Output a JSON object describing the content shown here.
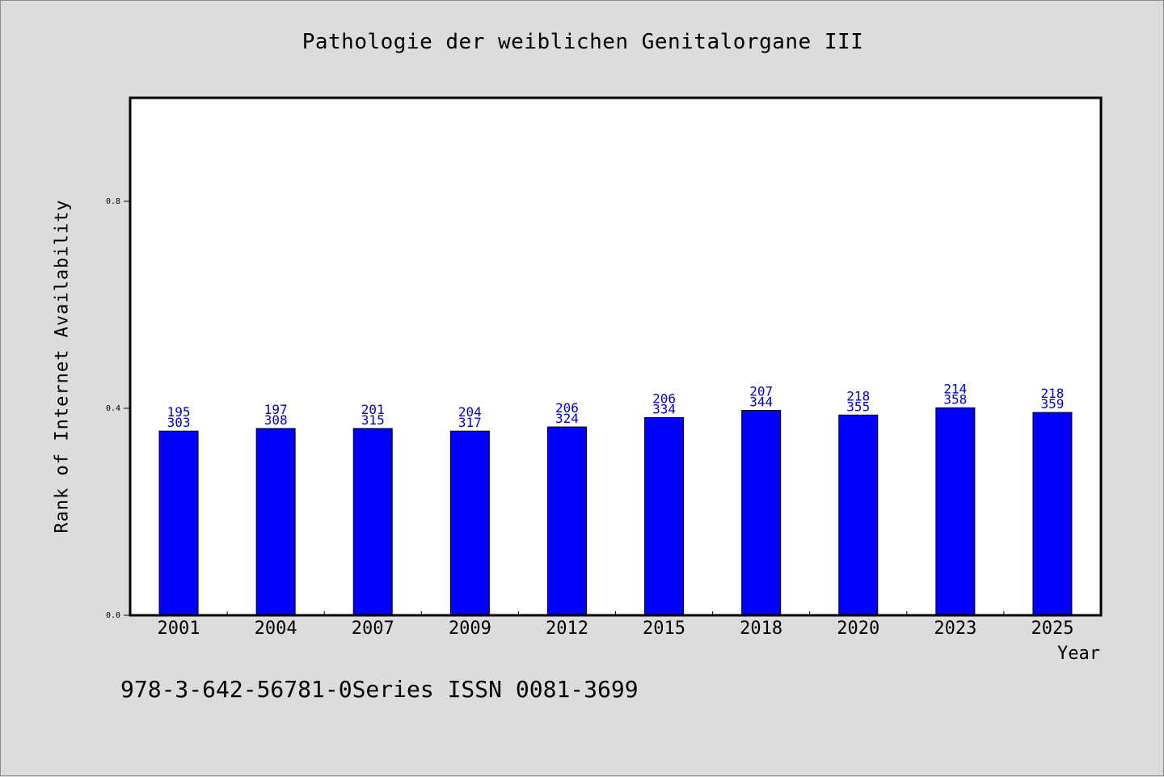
{
  "chart_data": {
    "type": "bar",
    "title": "Pathologie der weiblichen Genitalorgane III",
    "xlabel": "Year",
    "ylabel": "Rank of Internet Availability",
    "categories": [
      "2001",
      "2004",
      "2007",
      "2009",
      "2012",
      "2015",
      "2018",
      "2020",
      "2023",
      "2025"
    ],
    "values": [
      0.356,
      0.361,
      0.361,
      0.356,
      0.364,
      0.382,
      0.396,
      0.387,
      0.401,
      0.392
    ],
    "labels_top": [
      "195",
      "197",
      "201",
      "204",
      "206",
      "206",
      "207",
      "218",
      "214",
      "218"
    ],
    "labels_bottom": [
      "303",
      "308",
      "315",
      "317",
      "324",
      "334",
      "344",
      "355",
      "358",
      "359"
    ],
    "ylim": [
      0,
      1.0
    ],
    "yticks": [
      0.0,
      0.4,
      0.8
    ],
    "ytick_labels": [
      "0.0",
      "0.4",
      "0.8"
    ],
    "grid": false,
    "bar_color": "#0000ff",
    "label_color": "#0000cc"
  },
  "footer": {
    "text": "978-3-642-56781-0Series ISSN 0081-3699"
  }
}
